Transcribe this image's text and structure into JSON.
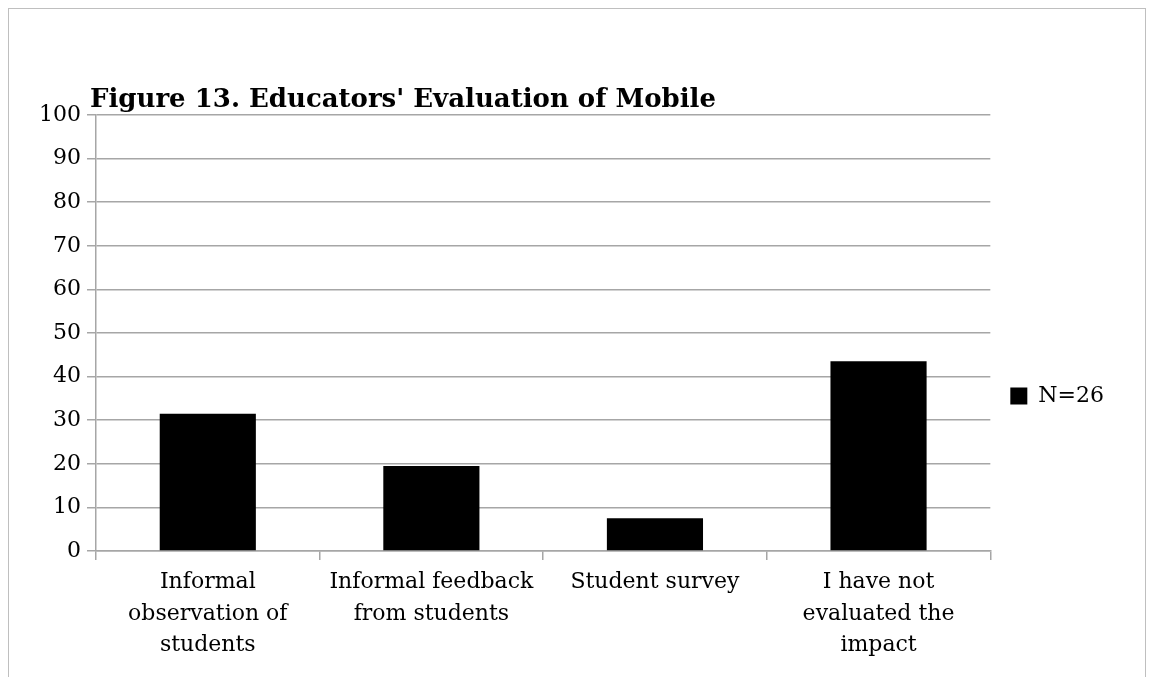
{
  "chart_data": {
    "type": "bar",
    "title": "Figure 13. Educators' Evaluation of Mobile",
    "categories": [
      "Informal observation of students",
      "Informal feedback from students",
      "Student survey",
      "I have not evaluated the impact"
    ],
    "series": [
      {
        "name": "N=26",
        "color": "#000000",
        "values": [
          31.5,
          19.5,
          7.5,
          43.5
        ]
      }
    ],
    "ylim": [
      0,
      100
    ],
    "yticks": [
      0,
      10,
      20,
      30,
      40,
      50,
      60,
      70,
      80,
      90,
      100
    ],
    "grid": "y",
    "legend": "right"
  }
}
